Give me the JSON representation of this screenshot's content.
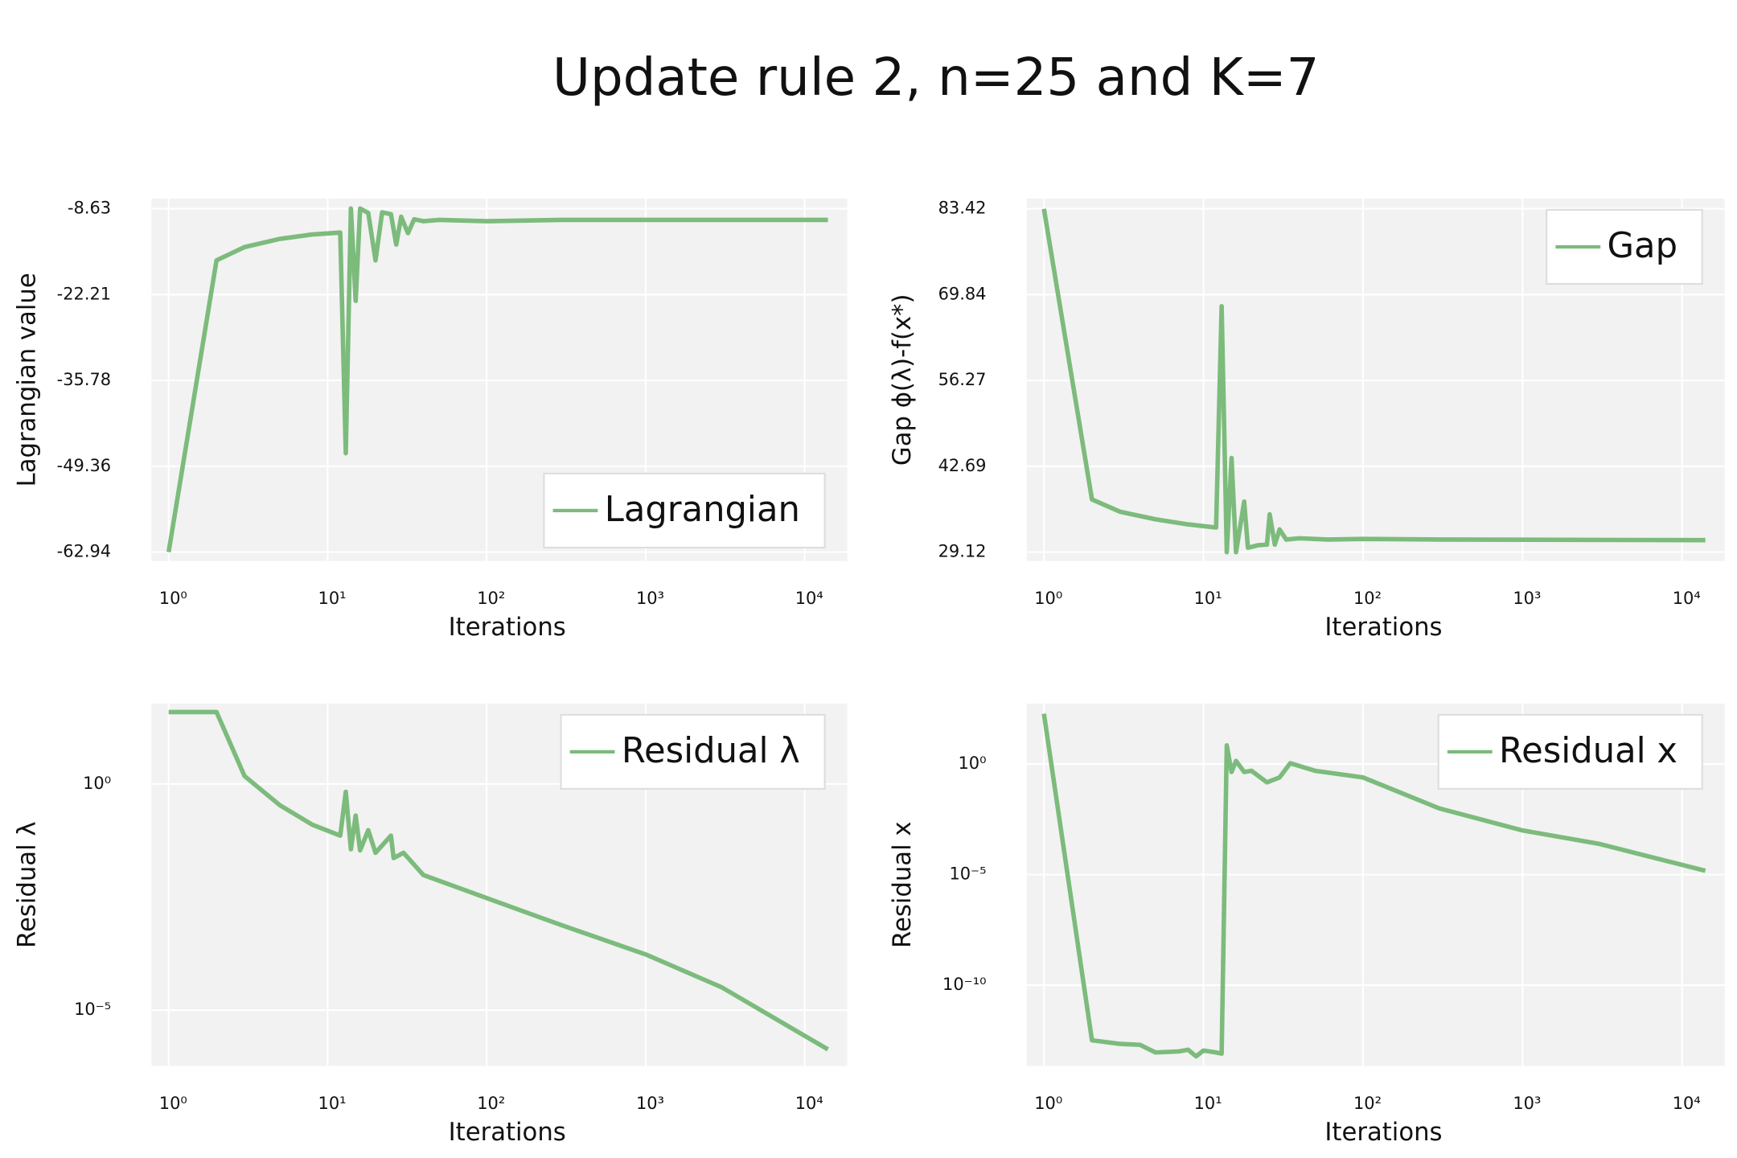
{
  "title": "Update rule 2, n=25 and K=7",
  "chart_data": [
    {
      "type": "line",
      "xlabel": "Iterations",
      "ylabel": "Lagrangian value",
      "xscale": "log",
      "yscale": "linear",
      "xlim": [
        0.78,
        18500
      ],
      "ylim": [
        -64.36,
        -7.03
      ],
      "grid": true,
      "legend": "lower right",
      "xticks": [
        {
          "value": 1,
          "label": "10⁰"
        },
        {
          "value": 10,
          "label": "10¹"
        },
        {
          "value": 100,
          "label": "10²"
        },
        {
          "value": 1000,
          "label": "10³"
        },
        {
          "value": 10000,
          "label": "10⁴"
        }
      ],
      "yticks": [
        -62.94,
        -49.36,
        -35.78,
        -22.21,
        -8.63
      ],
      "x": [
        1,
        2,
        3,
        5,
        8,
        12,
        13,
        14,
        15,
        16,
        18,
        20,
        22,
        25,
        27,
        29,
        32,
        35,
        40,
        50,
        100,
        300,
        14000
      ],
      "series": [
        {
          "name": "Lagrangian",
          "color": "#7cbb7c",
          "values": [
            -62.94,
            -16.8,
            -14.7,
            -13.4,
            -12.7,
            -12.4,
            -47.3,
            -8.6,
            -23.2,
            -8.6,
            -9.3,
            -16.8,
            -9.2,
            -9.5,
            -14.3,
            -9.9,
            -12.5,
            -10.3,
            -10.6,
            -10.4,
            -10.6,
            -10.4,
            -10.4
          ]
        }
      ]
    },
    {
      "type": "line",
      "xlabel": "Iterations",
      "ylabel": "Gap ϕ(λ)-f(x*)",
      "xscale": "log",
      "yscale": "linear",
      "xlim": [
        0.78,
        18500
      ],
      "ylim": [
        27.7,
        85.02
      ],
      "grid": true,
      "legend": "upper right",
      "xticks": [
        {
          "value": 1,
          "label": "10⁰"
        },
        {
          "value": 10,
          "label": "10¹"
        },
        {
          "value": 100,
          "label": "10²"
        },
        {
          "value": 1000,
          "label": "10³"
        },
        {
          "value": 10000,
          "label": "10⁴"
        }
      ],
      "yticks": [
        29.12,
        42.69,
        56.27,
        69.84,
        83.42
      ],
      "x": [
        1,
        2,
        3,
        5,
        8,
        12,
        13,
        14,
        15,
        16,
        18,
        19,
        22,
        25,
        26,
        28,
        30,
        33,
        40,
        60,
        100,
        300,
        14000
      ],
      "series": [
        {
          "name": "Gap",
          "color": "#7cbb7c",
          "values": [
            83.4,
            37.45,
            35.5,
            34.3,
            33.5,
            33.0,
            68.0,
            29.1,
            44.0,
            29.1,
            37.1,
            29.8,
            30.2,
            30.3,
            35.1,
            30.3,
            32.7,
            31.1,
            31.3,
            31.1,
            31.2,
            31.1,
            31.0
          ]
        }
      ]
    },
    {
      "type": "line",
      "xlabel": "Iterations",
      "ylabel": "Residual λ",
      "xscale": "log",
      "yscale": "log",
      "xlim": [
        0.78,
        18500
      ],
      "ylim": [
        5.8e-07,
        60
      ],
      "grid": true,
      "legend": "upper right",
      "xticks": [
        {
          "value": 1,
          "label": "10⁰"
        },
        {
          "value": 10,
          "label": "10¹"
        },
        {
          "value": 100,
          "label": "10²"
        },
        {
          "value": 1000,
          "label": "10³"
        },
        {
          "value": 10000,
          "label": "10⁴"
        }
      ],
      "yticks": [
        {
          "value": 1,
          "label": "10⁰"
        },
        {
          "value": 1e-05,
          "label": "10⁻⁵"
        }
      ],
      "x": [
        1,
        2,
        3,
        5,
        8,
        12,
        13,
        14,
        15,
        16,
        18,
        20,
        25,
        26,
        30,
        40,
        100,
        300,
        1000,
        3000,
        14000
      ],
      "series": [
        {
          "name": "Residual λ",
          "color": "#7cbb7c",
          "values": [
            39,
            39,
            1.5,
            0.34,
            0.126,
            0.072,
            0.67,
            0.036,
            0.2,
            0.034,
            0.095,
            0.03,
            0.072,
            0.023,
            0.03,
            0.0097,
            0.003,
            0.00074,
            0.00017,
            3.2e-05,
            1.35e-06
          ]
        }
      ]
    },
    {
      "type": "line",
      "xlabel": "Iterations",
      "ylabel": "Residual x",
      "xscale": "log",
      "yscale": "log",
      "xlim": [
        0.78,
        18500
      ],
      "ylim": [
        2.2e-14,
        550
      ],
      "grid": true,
      "legend": "upper right",
      "xticks": [
        {
          "value": 1,
          "label": "10⁰"
        },
        {
          "value": 10,
          "label": "10¹"
        },
        {
          "value": 100,
          "label": "10²"
        },
        {
          "value": 1000,
          "label": "10³"
        },
        {
          "value": 10000,
          "label": "10⁴"
        }
      ],
      "yticks": [
        {
          "value": 1,
          "label": "10⁰"
        },
        {
          "value": 1e-05,
          "label": "10⁻⁵"
        },
        {
          "value": 1e-10,
          "label": "10⁻¹⁰"
        }
      ],
      "x": [
        1,
        2,
        3,
        4,
        5,
        7,
        8,
        9,
        10,
        12,
        13,
        14,
        15,
        16,
        18,
        20,
        25,
        30,
        35,
        50,
        100,
        300,
        1000,
        3000,
        14000
      ],
      "series": [
        {
          "name": "Residual x",
          "color": "#7cbb7c",
          "values": [
            190,
            3.2e-13,
            2.2e-13,
            2e-13,
            9e-14,
            1e-13,
            1.2e-13,
            6e-14,
            1.1e-13,
            9e-14,
            8e-14,
            7,
            0.44,
            1.4,
            0.44,
            0.5,
            0.15,
            0.25,
            1.1,
            0.5,
            0.25,
            0.01,
            0.001,
            0.00025,
            1.5e-05
          ]
        }
      ]
    }
  ]
}
